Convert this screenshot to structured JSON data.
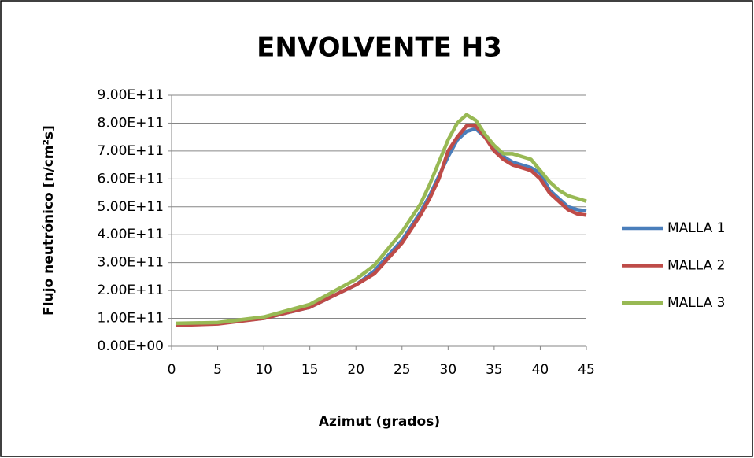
{
  "chart_data": {
    "type": "line",
    "title": "ENVOLVENTE H3",
    "xlabel": "Azimut (grados)",
    "ylabel": "Flujo neutrónico [n/cm²s]",
    "x": [
      0.5,
      5,
      10,
      15,
      20,
      22,
      25,
      27,
      28,
      29,
      30,
      31,
      32,
      33,
      34,
      35,
      36,
      37,
      38,
      39,
      40,
      41,
      42,
      43,
      44,
      45
    ],
    "series": [
      {
        "name": "MALLA 1",
        "color": "#4a7ebb",
        "values": [
          78000000000.0,
          82000000000.0,
          100000000000.0,
          140000000000.0,
          220000000000.0,
          270000000000.0,
          380000000000.0,
          480000000000.0,
          540000000000.0,
          610000000000.0,
          680000000000.0,
          740000000000.0,
          770000000000.0,
          780000000000.0,
          750000000000.0,
          710000000000.0,
          680000000000.0,
          660000000000.0,
          650000000000.0,
          640000000000.0,
          620000000000.0,
          560000000000.0,
          530000000000.0,
          500000000000.0,
          490000000000.0,
          485000000000.0
        ]
      },
      {
        "name": "MALLA 2",
        "color": "#be4b48",
        "values": [
          75000000000.0,
          80000000000.0,
          100000000000.0,
          140000000000.0,
          220000000000.0,
          260000000000.0,
          370000000000.0,
          470000000000.0,
          530000000000.0,
          600000000000.0,
          700000000000.0,
          750000000000.0,
          790000000000.0,
          790000000000.0,
          750000000000.0,
          700000000000.0,
          670000000000.0,
          650000000000.0,
          640000000000.0,
          630000000000.0,
          600000000000.0,
          550000000000.0,
          520000000000.0,
          490000000000.0,
          475000000000.0,
          470000000000.0
        ]
      },
      {
        "name": "MALLA 3",
        "color": "#98b954",
        "values": [
          82000000000.0,
          85000000000.0,
          105000000000.0,
          150000000000.0,
          240000000000.0,
          290000000000.0,
          410000000000.0,
          510000000000.0,
          580000000000.0,
          660000000000.0,
          740000000000.0,
          800000000000.0,
          830000000000.0,
          810000000000.0,
          760000000000.0,
          720000000000.0,
          690000000000.0,
          690000000000.0,
          680000000000.0,
          670000000000.0,
          630000000000.0,
          590000000000.0,
          560000000000.0,
          540000000000.0,
          530000000000.0,
          520000000000.0
        ]
      }
    ],
    "xlim": [
      0,
      45
    ],
    "xticks": [
      0,
      5,
      10,
      15,
      20,
      25,
      30,
      35,
      40,
      45
    ],
    "ylim": [
      0,
      900000000000.0
    ],
    "yticks": [
      {
        "value": 0,
        "label": "0.00E+00"
      },
      {
        "value": 100000000000.0,
        "label": "1.00E+11"
      },
      {
        "value": 200000000000.0,
        "label": "2.00E+11"
      },
      {
        "value": 300000000000.0,
        "label": "3.00E+11"
      },
      {
        "value": 400000000000.0,
        "label": "4.00E+11"
      },
      {
        "value": 500000000000.0,
        "label": "5.00E+11"
      },
      {
        "value": 600000000000.0,
        "label": "6.00E+11"
      },
      {
        "value": 700000000000.0,
        "label": "7.00E+11"
      },
      {
        "value": 800000000000.0,
        "label": "8.00E+11"
      },
      {
        "value": 900000000000.0,
        "label": "9.00E+11"
      }
    ],
    "grid": true,
    "legend": "right"
  }
}
